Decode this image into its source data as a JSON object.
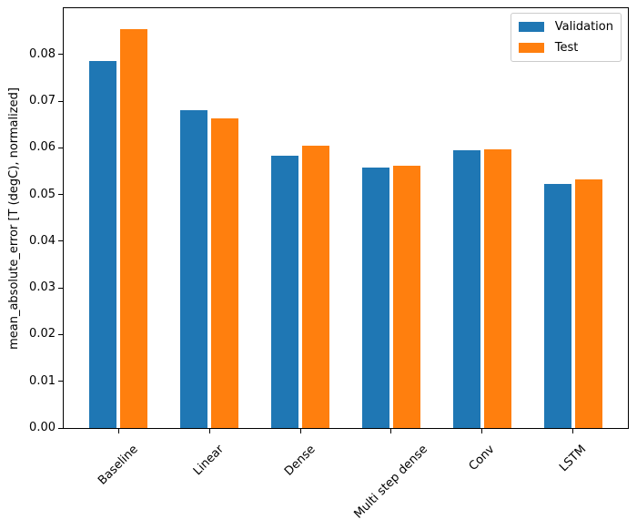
{
  "chart_data": {
    "type": "bar",
    "ylabel": "mean_absolute_error [T (degC), normalized]",
    "xlabel": "",
    "categories": [
      "Baseline",
      "Linear",
      "Dense",
      "Multi step dense",
      "Conv",
      "LSTM"
    ],
    "series": [
      {
        "name": "Validation",
        "color": "#1f77b4",
        "values": [
          0.0785,
          0.068,
          0.0583,
          0.0557,
          0.0594,
          0.0522
        ]
      },
      {
        "name": "Test",
        "color": "#ff7f0e",
        "values": [
          0.0855,
          0.0664,
          0.0604,
          0.0561,
          0.0596,
          0.0532
        ]
      }
    ],
    "yticks": [
      0.0,
      0.01,
      0.02,
      0.03,
      0.04,
      0.05,
      0.06,
      0.07,
      0.08
    ],
    "ylim": [
      0,
      0.0899
    ],
    "xlim": [
      -0.602,
      5.602
    ],
    "bar_width": 0.3,
    "bar_offsets": [
      -0.17,
      0.17
    ],
    "xtick_rotation": 45,
    "grid": false,
    "legend": {
      "position": "upper right"
    },
    "axis_color": "#000000",
    "background": "#ffffff"
  }
}
